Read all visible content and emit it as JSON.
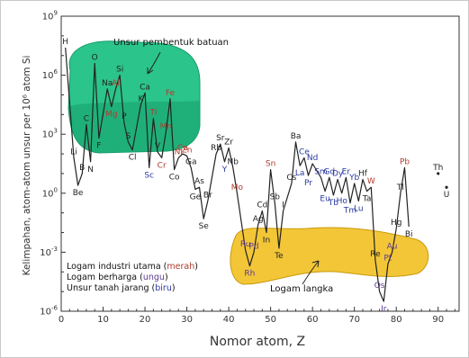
{
  "chart_data": {
    "type": "line",
    "title": "",
    "xlabel": "Nomor atom, Z",
    "ylabel": "Kelimpahan, atom-atom unsur per 10⁶ atom Si",
    "xlim": [
      0,
      95
    ],
    "ylim_log10": [
      -6,
      9
    ],
    "x_ticks": [
      "0",
      "10",
      "20",
      "30",
      "40",
      "50",
      "60",
      "70",
      "80",
      "90"
    ],
    "y_ticks": [
      {
        "base": "10",
        "exp": "9"
      },
      {
        "base": "10",
        "exp": "6"
      },
      {
        "base": "10",
        "exp": "3"
      },
      {
        "base": "10",
        "exp": "0"
      },
      {
        "base": "10",
        "exp": "-3"
      },
      {
        "base": "10",
        "exp": "-6"
      }
    ],
    "grid": false,
    "colors": {
      "industrial": "#b03a2e",
      "precious": "#5b3a8e",
      "rare_earth": "#2a3a9e",
      "other": "#222222",
      "rock_region": "#2bc48a",
      "rock_region_dark": "#15a06e",
      "rare_region": "#f3c637"
    },
    "points": [
      {
        "el": "H",
        "z": 1,
        "log": 7.4,
        "cat": "other"
      },
      {
        "el": "Li",
        "z": 3,
        "log": 1.8,
        "cat": "other"
      },
      {
        "el": "Be",
        "z": 4,
        "log": 0.4,
        "cat": "other"
      },
      {
        "el": "B",
        "z": 5,
        "log": 1.0,
        "cat": "other"
      },
      {
        "el": "C",
        "z": 6,
        "log": 3.5,
        "cat": "other"
      },
      {
        "el": "N",
        "z": 7,
        "log": 1.6,
        "cat": "other"
      },
      {
        "el": "O",
        "z": 8,
        "log": 6.6,
        "cat": "other"
      },
      {
        "el": "F",
        "z": 9,
        "log": 2.8,
        "cat": "other"
      },
      {
        "el": "Na",
        "z": 11,
        "log": 5.3,
        "cat": "other"
      },
      {
        "el": "Mg",
        "z": 12,
        "log": 4.4,
        "cat": "industrial"
      },
      {
        "el": "Al",
        "z": 13,
        "log": 5.3,
        "cat": "industrial"
      },
      {
        "el": "Si",
        "z": 14,
        "log": 6.0,
        "cat": "other"
      },
      {
        "el": "P",
        "z": 15,
        "log": 3.6,
        "cat": "other"
      },
      {
        "el": "S",
        "z": 16,
        "log": 2.6,
        "cat": "other"
      },
      {
        "el": "Cl",
        "z": 17,
        "log": 2.2,
        "cat": "other"
      },
      {
        "el": "K",
        "z": 19,
        "log": 4.5,
        "cat": "other"
      },
      {
        "el": "Ca",
        "z": 20,
        "log": 5.1,
        "cat": "other"
      },
      {
        "el": "Sc",
        "z": 21,
        "log": 1.3,
        "cat": "rare_earth"
      },
      {
        "el": "Ti",
        "z": 22,
        "log": 3.8,
        "cat": "industrial"
      },
      {
        "el": "V",
        "z": 23,
        "log": 2.1,
        "cat": "other"
      },
      {
        "el": "Cr",
        "z": 24,
        "log": 1.8,
        "cat": "industrial"
      },
      {
        "el": "Mn",
        "z": 25,
        "log": 3.1,
        "cat": "industrial"
      },
      {
        "el": "Fe",
        "z": 26,
        "log": 4.8,
        "cat": "industrial"
      },
      {
        "el": "Co",
        "z": 27,
        "log": 1.2,
        "cat": "other"
      },
      {
        "el": "Ni",
        "z": 28,
        "log": 1.8,
        "cat": "industrial"
      },
      {
        "el": "Cu",
        "z": 29,
        "log": 2.0,
        "cat": "industrial"
      },
      {
        "el": "Zn",
        "z": 30,
        "log": 1.9,
        "cat": "industrial"
      },
      {
        "el": "Ga",
        "z": 31,
        "log": 1.3,
        "cat": "other"
      },
      {
        "el": "Ge",
        "z": 32,
        "log": 0.2,
        "cat": "other"
      },
      {
        "el": "As",
        "z": 33,
        "log": 0.3,
        "cat": "other"
      },
      {
        "el": "Se",
        "z": 34,
        "log": -1.3,
        "cat": "other"
      },
      {
        "el": "Br",
        "z": 35,
        "log": -0.4,
        "cat": "other"
      },
      {
        "el": "Rb",
        "z": 37,
        "log": 2.0,
        "cat": "other"
      },
      {
        "el": "Sr",
        "z": 38,
        "log": 2.5,
        "cat": "other"
      },
      {
        "el": "Y",
        "z": 39,
        "log": 1.6,
        "cat": "rare_earth"
      },
      {
        "el": "Zr",
        "z": 40,
        "log": 2.3,
        "cat": "other"
      },
      {
        "el": "Nb",
        "z": 41,
        "log": 1.3,
        "cat": "other"
      },
      {
        "el": "Mo",
        "z": 42,
        "log": 0.0,
        "cat": "industrial"
      },
      {
        "el": "Ru",
        "z": 44,
        "log": -2.9,
        "cat": "precious"
      },
      {
        "el": "Rh",
        "z": 45,
        "log": -3.7,
        "cat": "precious"
      },
      {
        "el": "Pd",
        "z": 46,
        "log": -3.0,
        "cat": "precious"
      },
      {
        "el": "Ag",
        "z": 47,
        "log": -1.6,
        "cat": "other"
      },
      {
        "el": "Cd",
        "z": 48,
        "log": -0.9,
        "cat": "other"
      },
      {
        "el": "In",
        "z": 49,
        "log": -2.0,
        "cat": "other"
      },
      {
        "el": "Sn",
        "z": 50,
        "log": 1.2,
        "cat": "industrial"
      },
      {
        "el": "Sb",
        "z": 51,
        "log": -0.5,
        "cat": "other"
      },
      {
        "el": "Te",
        "z": 52,
        "log": -2.8,
        "cat": "other"
      },
      {
        "el": "I",
        "z": 53,
        "log": -0.9,
        "cat": "other"
      },
      {
        "el": "Cs",
        "z": 55,
        "log": 0.5,
        "cat": "other"
      },
      {
        "el": "Ba",
        "z": 56,
        "log": 2.6,
        "cat": "other"
      },
      {
        "el": "La",
        "z": 57,
        "log": 1.4,
        "cat": "rare_earth"
      },
      {
        "el": "Ce",
        "z": 58,
        "log": 1.8,
        "cat": "rare_earth"
      },
      {
        "el": "Pr",
        "z": 59,
        "log": 0.9,
        "cat": "rare_earth"
      },
      {
        "el": "Nd",
        "z": 60,
        "log": 1.5,
        "cat": "rare_earth"
      },
      {
        "el": "Sm",
        "z": 62,
        "log": 0.8,
        "cat": "rare_earth"
      },
      {
        "el": "Eu",
        "z": 63,
        "log": 0.1,
        "cat": "rare_earth"
      },
      {
        "el": "Gd",
        "z": 64,
        "log": 0.8,
        "cat": "rare_earth"
      },
      {
        "el": "Tb",
        "z": 65,
        "log": -0.1,
        "cat": "rare_earth"
      },
      {
        "el": "Dy",
        "z": 66,
        "log": 0.7,
        "cat": "rare_earth"
      },
      {
        "el": "Ho",
        "z": 67,
        "log": 0.0,
        "cat": "rare_earth"
      },
      {
        "el": "Er",
        "z": 68,
        "log": 0.8,
        "cat": "rare_earth"
      },
      {
        "el": "Tm",
        "z": 69,
        "log": -0.5,
        "cat": "rare_earth"
      },
      {
        "el": "Yb",
        "z": 70,
        "log": 0.5,
        "cat": "rare_earth"
      },
      {
        "el": "Lu",
        "z": 71,
        "log": -0.4,
        "cat": "rare_earth"
      },
      {
        "el": "Hf",
        "z": 72,
        "log": 0.7,
        "cat": "other"
      },
      {
        "el": "Ta",
        "z": 73,
        "log": 0.1,
        "cat": "other"
      },
      {
        "el": "W",
        "z": 74,
        "log": 0.3,
        "cat": "industrial"
      },
      {
        "el": "Re",
        "z": 75,
        "log": -3.4,
        "cat": "other"
      },
      {
        "el": "Os",
        "z": 76,
        "log": -5.0,
        "cat": "precious"
      },
      {
        "el": "Ir",
        "z": 77,
        "log": -5.5,
        "cat": "precious"
      },
      {
        "el": "Pt",
        "z": 78,
        "log": -3.6,
        "cat": "precious"
      },
      {
        "el": "Au",
        "z": 79,
        "log": -3.0,
        "cat": "precious"
      },
      {
        "el": "Hg",
        "z": 80,
        "log": -1.8,
        "cat": "other"
      },
      {
        "el": "Tl",
        "z": 81,
        "log": 0.0,
        "cat": "other"
      },
      {
        "el": "Pb",
        "z": 82,
        "log": 1.3,
        "cat": "industrial"
      },
      {
        "el": "Bi",
        "z": 83,
        "log": -1.7,
        "cat": "other"
      },
      {
        "el": "Th",
        "z": 90,
        "log": 1.0,
        "cat": "other"
      },
      {
        "el": "U",
        "z": 92,
        "log": 0.3,
        "cat": "other"
      }
    ],
    "annotations": {
      "rock_forming": "Unsur pembentuk batuan",
      "rare_metals": "Logam langka"
    },
    "legend": [
      {
        "text": "Logam industri utama (",
        "colored": "merah",
        "end": ")",
        "cat": "industrial"
      },
      {
        "text": "Logam berharga (",
        "colored": "ungu",
        "end": ")",
        "cat": "precious"
      },
      {
        "text": "Unsur tanah jarang (",
        "colored": "biru",
        "end": ")",
        "cat": "rare_earth"
      }
    ]
  }
}
